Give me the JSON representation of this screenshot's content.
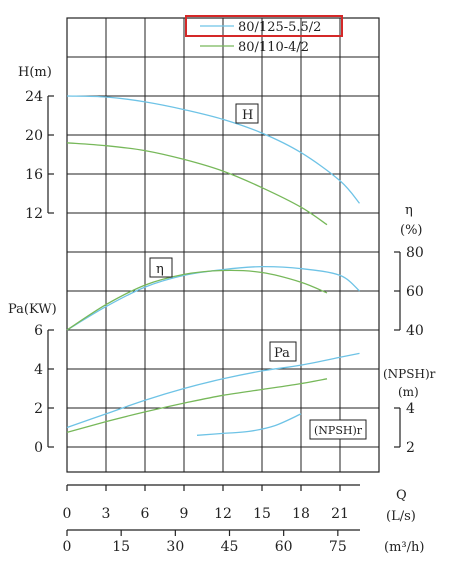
{
  "colors": {
    "series_1": "#6ec3e6",
    "series_2": "#77b85a",
    "highlight_box": "#d42828",
    "grid": "#222222"
  },
  "chart_data": {
    "type": "line",
    "legend": {
      "placement": "top",
      "entries": [
        "80/125-5.5/2",
        "80/110-4/2"
      ],
      "highlighted": "80/125-5.5/2"
    },
    "x_axes": {
      "label": "Q",
      "flow_ls": {
        "unit": "(L/s)",
        "range": [
          0,
          24
        ],
        "ticks": [
          "0",
          "3",
          "6",
          "9",
          "12",
          "15",
          "18",
          "21"
        ]
      },
      "flow_m3h": {
        "unit": "(m³/h)",
        "range": [
          0,
          86.4
        ],
        "ticks": [
          "0",
          "15",
          "30",
          "45",
          "60",
          "75"
        ]
      }
    },
    "y_axes": {
      "head": {
        "label": "H(m)",
        "range": [
          12,
          24
        ],
        "ticks": [
          "12",
          "16",
          "20",
          "24"
        ]
      },
      "efficiency": {
        "label": "η",
        "unit": "(%)",
        "range": [
          40,
          80
        ],
        "ticks": [
          "40",
          "60",
          "80"
        ]
      },
      "power": {
        "label": "Pa(KW)",
        "range": [
          0,
          6
        ],
        "ticks": [
          "0",
          "2",
          "4",
          "6"
        ]
      },
      "npsh": {
        "label": "(NPSH)r",
        "unit": "(m)",
        "range": [
          2,
          4
        ],
        "ticks": [
          "2",
          "4"
        ]
      }
    },
    "curve_labels": [
      "H",
      "η",
      "Pa",
      "(NPSH)r"
    ],
    "series": [
      {
        "name": "80/125-5.5/2",
        "head": {
          "x": [
            0,
            3,
            6,
            9,
            12,
            15,
            18,
            21,
            22.5
          ],
          "y": [
            24,
            23.9,
            23.4,
            22.6,
            21.6,
            20.2,
            18.2,
            15.3,
            13
          ]
        },
        "efficiency": {
          "x": [
            0,
            3,
            6,
            9,
            12,
            15,
            18,
            21,
            22.5
          ],
          "y": [
            40,
            52,
            62,
            68,
            71,
            72.5,
            71.5,
            68,
            60
          ]
        },
        "power": {
          "x": [
            0,
            3,
            6,
            9,
            12,
            15,
            18,
            21,
            22.5
          ],
          "y": [
            1.0,
            1.7,
            2.4,
            3.0,
            3.5,
            3.9,
            4.2,
            4.6,
            4.8
          ]
        },
        "npsh": {
          "x": [
            10,
            12,
            14,
            16,
            18
          ],
          "y": [
            2.6,
            2.7,
            2.8,
            3.1,
            3.7
          ]
        }
      },
      {
        "name": "80/110-4/2",
        "head": {
          "x": [
            0,
            3,
            6,
            9,
            12,
            15,
            18,
            20
          ],
          "y": [
            19.2,
            18.9,
            18.4,
            17.5,
            16.3,
            14.6,
            12.6,
            10.8
          ]
        },
        "efficiency": {
          "x": [
            0,
            3,
            6,
            9,
            12,
            15,
            18,
            20
          ],
          "y": [
            40,
            53,
            63,
            68.5,
            70.5,
            69.5,
            64.5,
            59
          ]
        },
        "power": {
          "x": [
            0,
            3,
            6,
            9,
            12,
            15,
            18,
            20
          ],
          "y": [
            0.75,
            1.3,
            1.8,
            2.25,
            2.65,
            2.95,
            3.25,
            3.5
          ]
        }
      }
    ]
  }
}
